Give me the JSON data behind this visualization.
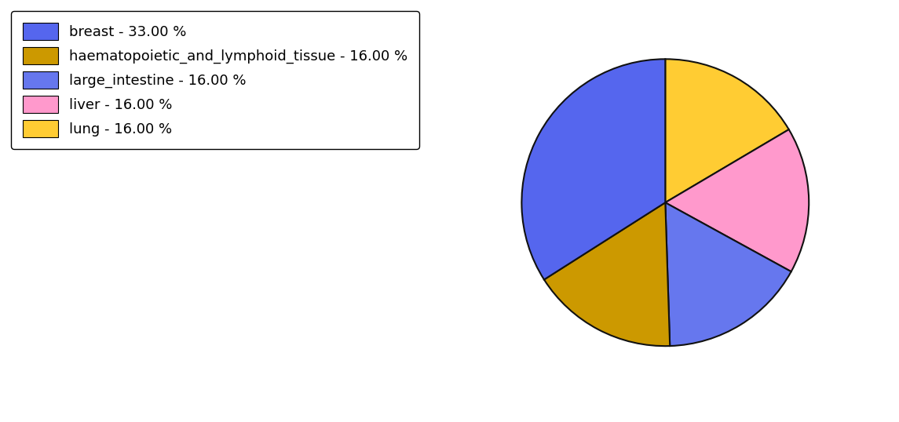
{
  "labels": [
    "breast",
    "haematopoietic_and_lymphoid_tissue",
    "large_intestine",
    "liver",
    "lung"
  ],
  "sizes": [
    33.0,
    16.0,
    16.0,
    16.0,
    16.0
  ],
  "colors": [
    "#5566ee",
    "#cc9900",
    "#6677ee",
    "#ff99cc",
    "#ffcc33"
  ],
  "legend_labels": [
    "breast - 33.00 %",
    "haematopoietic_and_lymphoid_tissue - 16.00 %",
    "large_intestine - 16.00 %",
    "liver - 16.00 %",
    "lung - 16.00 %"
  ],
  "legend_colors": [
    "#5566ee",
    "#cc9900",
    "#6677ee",
    "#ff99cc",
    "#ffcc33"
  ],
  "figsize": [
    11.45,
    5.38
  ],
  "dpi": 100,
  "legend_fontsize": 13,
  "edge_color": "#111111",
  "edge_width": 1.5
}
